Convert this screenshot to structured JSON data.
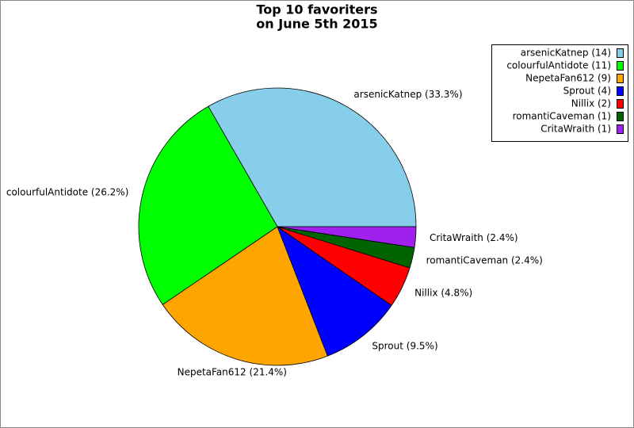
{
  "chart_data": {
    "type": "pie",
    "title": "Top 10 favoriters",
    "subtitle": "on June 5th 2015",
    "values": [
      33.3,
      26.2,
      21.4,
      9.5,
      4.8,
      2.4,
      2.4
    ],
    "value_labels": [
      "arsenicKatnep (33.3%)",
      "colourfulAntidote (26.2%)",
      "NepetaFan612 (21.4%)",
      "Sprout (9.5%)",
      "Nillix (4.8%)",
      "romantiCaveman (2.4%)",
      "CritaWraith (2.4%)"
    ],
    "legend_labels": [
      "arsenicKatnep (14)",
      "colourfulAntidote (11)",
      "NepetaFan612 (9)",
      "Sprout (4)",
      "Nillix (2)",
      "romantiCaveman (1)",
      "CritaWraith (1)"
    ],
    "colors": [
      "#87ceeb",
      "#00ff00",
      "#ffa500",
      "#0000ff",
      "#ff0000",
      "#006400",
      "#a020f0"
    ],
    "legend": "upper right"
  }
}
